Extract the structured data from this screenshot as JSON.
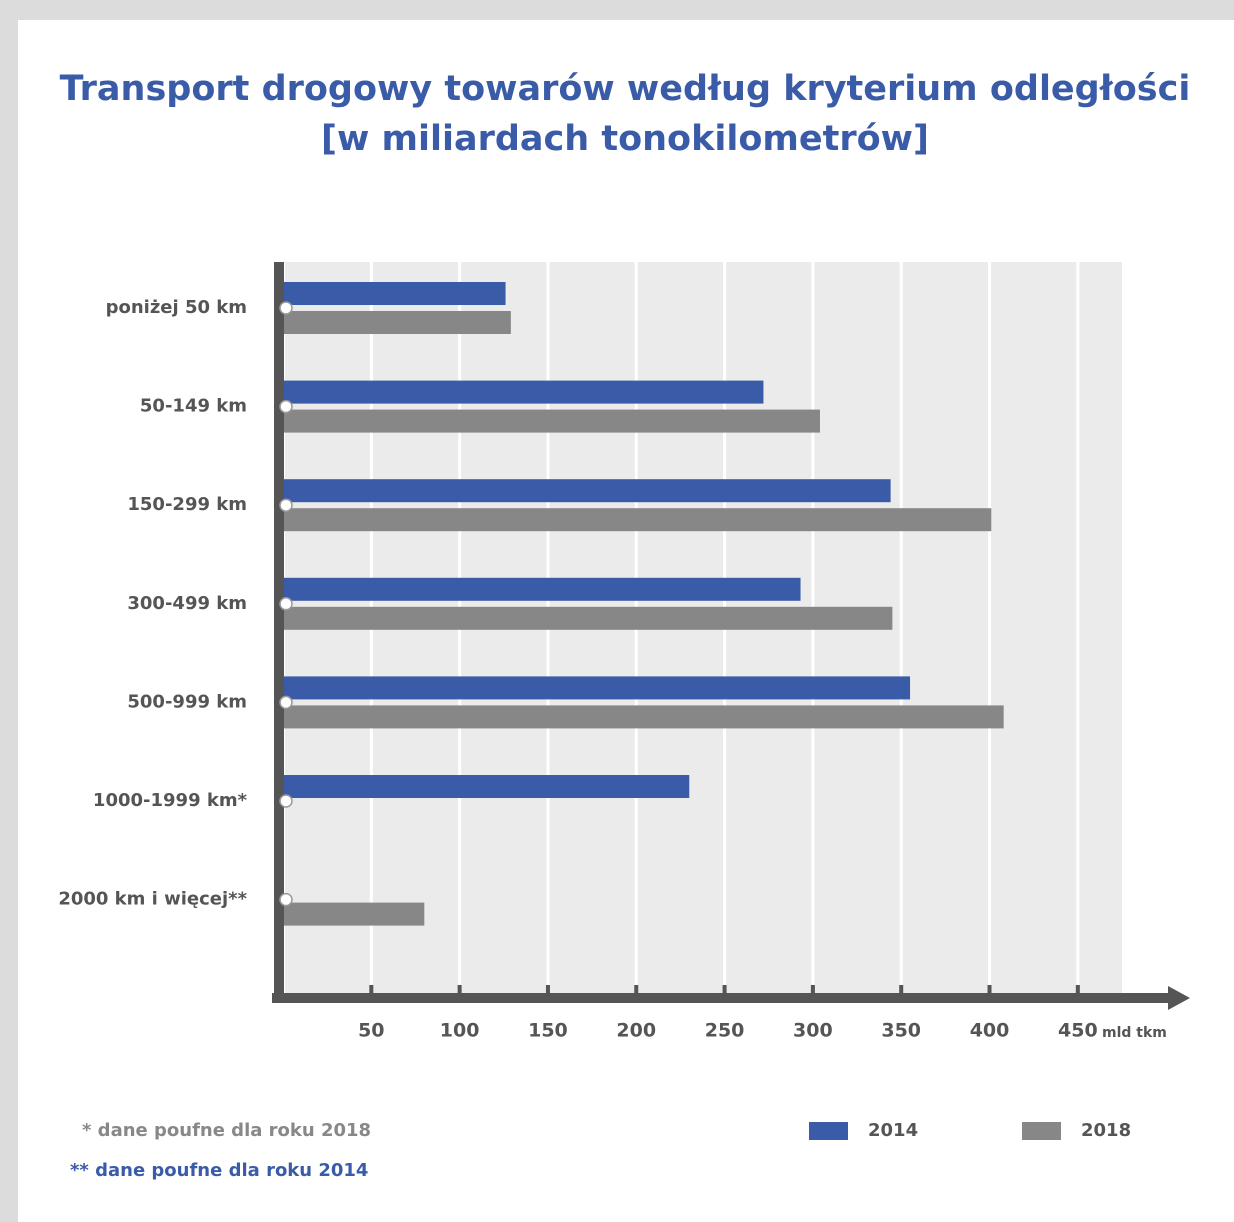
{
  "chart_data": {
    "type": "hbar",
    "title": "Transport drogowy towarów według kryterium odległości",
    "subtitle": "[w miliardach tonokilometrów]",
    "categories": [
      "poniżej 50 km",
      "50-149 km",
      "150-299 km",
      "300-499 km",
      "500-999 km",
      "1000-1999 km*",
      "2000 km i więcej**"
    ],
    "series": [
      {
        "name": "2014",
        "color": "#3a5ba8",
        "values": [
          126,
          272,
          344,
          293,
          355,
          230,
          null
        ]
      },
      {
        "name": "2018",
        "color": "#878787",
        "values": [
          129,
          304,
          401,
          345,
          408,
          null,
          80
        ]
      }
    ],
    "xlim": [
      0,
      475
    ],
    "xticks": [
      50,
      100,
      150,
      200,
      250,
      300,
      350,
      400,
      450
    ],
    "xlabel": "mld tkm",
    "grid": true,
    "footnotes": [
      "* dane poufne dla roku 2018",
      "** dane poufne dla roku 2014"
    ]
  }
}
